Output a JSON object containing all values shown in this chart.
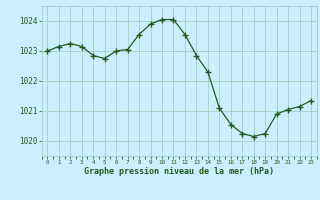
{
  "x": [
    0,
    1,
    2,
    3,
    4,
    5,
    6,
    7,
    8,
    9,
    10,
    11,
    12,
    13,
    14,
    15,
    16,
    17,
    18,
    19,
    20,
    21,
    22,
    23
  ],
  "y": [
    1023.0,
    1023.15,
    1023.25,
    1023.15,
    1022.85,
    1022.75,
    1023.0,
    1023.05,
    1023.55,
    1023.9,
    1024.05,
    1024.05,
    1023.55,
    1022.85,
    1022.3,
    1021.1,
    1020.55,
    1020.25,
    1020.15,
    1020.25,
    1020.9,
    1021.05,
    1021.15,
    1021.35
  ],
  "ylim": [
    1019.5,
    1024.5
  ],
  "yticks": [
    1020,
    1021,
    1022,
    1023,
    1024
  ],
  "xticks": [
    0,
    1,
    2,
    3,
    4,
    5,
    6,
    7,
    8,
    9,
    10,
    11,
    12,
    13,
    14,
    15,
    16,
    17,
    18,
    19,
    20,
    21,
    22,
    23
  ],
  "xlabel": "Graphe pression niveau de la mer (hPa)",
  "line_color": "#1f5e1f",
  "marker_color": "#1f5e1f",
  "bg_color": "#cceeff",
  "grid_color": "#99ccbb",
  "xlabel_color": "#1f5e1f",
  "tick_color": "#1f5e1f"
}
